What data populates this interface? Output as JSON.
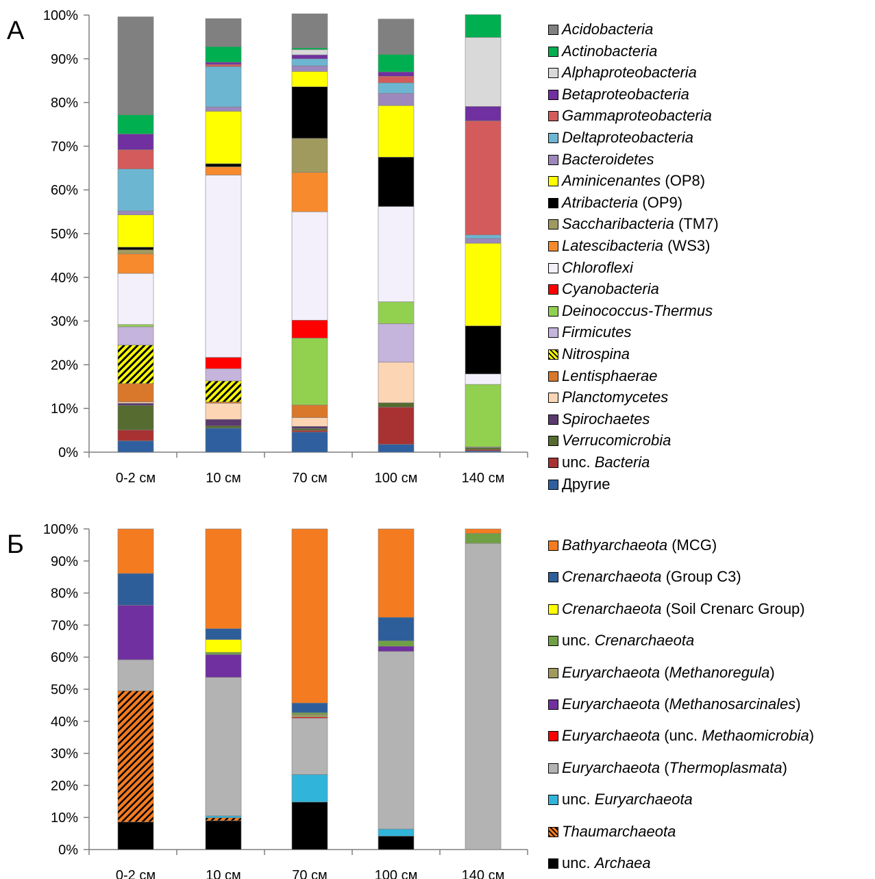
{
  "panels": [
    {
      "label": "А",
      "chart_data": {
        "type": "bar",
        "stacked": true,
        "percent": true,
        "categories": [
          "0-2 см",
          "10 см",
          "70 см",
          "100 см",
          "140 см"
        ],
        "yticks": [
          "0%",
          "10%",
          "20%",
          "30%",
          "40%",
          "50%",
          "60%",
          "70%",
          "80%",
          "90%",
          "100%"
        ],
        "ylim": [
          0,
          100
        ],
        "grid": false,
        "legend": "right",
        "series": [
          {
            "name": "Другие",
            "color": "#2f5f9e",
            "pattern": "none",
            "values": [
              2.6,
              5.5,
              4.6,
              1.8,
              0.3
            ]
          },
          {
            "name": "unc. Bacteria",
            "color": "#a83232",
            "pattern": "none",
            "values": [
              2.5,
              0.0,
              0.4,
              8.5,
              0.3
            ]
          },
          {
            "name": "Verrucomicrobia",
            "color": "#556b2f",
            "pattern": "none",
            "values": [
              5.6,
              0.5,
              0.4,
              1.0,
              0.4
            ]
          },
          {
            "name": "Spirochaetes",
            "color": "#5a3a6e",
            "pattern": "none",
            "values": [
              0.5,
              1.5,
              0.5,
              0.0,
              0.0
            ]
          },
          {
            "name": "Planctomycetes",
            "color": "#fcd5b4",
            "pattern": "none",
            "values": [
              0.3,
              3.7,
              2.0,
              9.3,
              0.1
            ]
          },
          {
            "name": "Lentisphaerae",
            "color": "#d9782b",
            "pattern": "none",
            "values": [
              4.2,
              0.3,
              2.9,
              0.0,
              0.1
            ]
          },
          {
            "name": "Nitrospina",
            "color": "#ffff00",
            "pattern": "hatch",
            "values": [
              8.8,
              4.8,
              0.0,
              0.0,
              0.0
            ]
          },
          {
            "name": "Firmicutes",
            "color": "#c5b4dc",
            "pattern": "none",
            "values": [
              4.2,
              2.8,
              0.0,
              8.8,
              0.0
            ]
          },
          {
            "name": "Deinococcus-Thermus",
            "color": "#92d050",
            "pattern": "none",
            "values": [
              0.5,
              0.0,
              15.3,
              5.0,
              14.3
            ]
          },
          {
            "name": "Cyanobacteria",
            "color": "#ff0000",
            "pattern": "none",
            "values": [
              0.0,
              2.6,
              4.1,
              0.0,
              0.0
            ]
          },
          {
            "name": "Chloroflexi",
            "color": "#f3effb",
            "pattern": "none",
            "values": [
              11.7,
              41.7,
              24.8,
              21.8,
              2.4
            ]
          },
          {
            "name": "Latescibacteria",
            "color": "#f68a2d",
            "pattern": "none",
            "values": [
              4.5,
              1.9,
              9.0,
              0.0,
              0.0
            ]
          },
          {
            "name": "Saccharibacteria",
            "color": "#a09a5e",
            "pattern": "none",
            "values": [
              0.9,
              0.0,
              7.8,
              0.0,
              0.0
            ]
          },
          {
            "name": "Atribacteria",
            "color": "#000000",
            "pattern": "none",
            "values": [
              0.6,
              0.7,
              11.8,
              11.3,
              11.0
            ]
          },
          {
            "name": "Aminicenantes",
            "color": "#ffff00",
            "pattern": "none",
            "values": [
              7.4,
              12.0,
              3.5,
              11.8,
              18.9
            ]
          },
          {
            "name": "Bacteroidetes",
            "color": "#9c88bc",
            "pattern": "none",
            "values": [
              0.9,
              1.0,
              1.3,
              2.8,
              1.1
            ]
          },
          {
            "name": "Deltaproteobacteria",
            "color": "#6db6d2",
            "pattern": "none",
            "values": [
              9.6,
              9.2,
              1.6,
              2.4,
              0.8
            ]
          },
          {
            "name": "Gammaproteobacteria",
            "color": "#d35b5b",
            "pattern": "none",
            "values": [
              4.4,
              0.5,
              0.0,
              1.5,
              26.1
            ]
          },
          {
            "name": "Betaproteobacteria",
            "color": "#7030a0",
            "pattern": "none",
            "values": [
              3.6,
              0.5,
              0.9,
              1.0,
              3.3
            ]
          },
          {
            "name": "Alphaproteobacteria",
            "color": "#d9d9d9",
            "pattern": "none",
            "values": [
              0.0,
              0.0,
              1.2,
              0.0,
              15.8
            ]
          },
          {
            "name": "Actinobacteria",
            "color": "#00b050",
            "pattern": "none",
            "values": [
              4.4,
              3.6,
              0.4,
              4.0,
              5.2
            ]
          },
          {
            "name": "Acidobacteria",
            "color": "#808080",
            "pattern": "none",
            "values": [
              22.4,
              6.4,
              7.8,
              8.1,
              0.0
            ]
          }
        ]
      },
      "legend": [
        {
          "color": "#808080",
          "pattern": "none",
          "italic": "Acidobacteria",
          "plain": "",
          "prefix": ""
        },
        {
          "color": "#00b050",
          "pattern": "none",
          "italic": "Actinobacteria",
          "plain": "",
          "prefix": ""
        },
        {
          "color": "#d9d9d9",
          "pattern": "none",
          "italic": "Alphaproteobacteria",
          "plain": "",
          "prefix": ""
        },
        {
          "color": "#7030a0",
          "pattern": "none",
          "italic": "Betaproteobacteria",
          "plain": "",
          "prefix": ""
        },
        {
          "color": "#d35b5b",
          "pattern": "none",
          "italic": "Gammaproteobacteria",
          "plain": "",
          "prefix": ""
        },
        {
          "color": "#6db6d2",
          "pattern": "none",
          "italic": "Deltaproteobacteria",
          "plain": "",
          "prefix": ""
        },
        {
          "color": "#9c88bc",
          "pattern": "none",
          "italic": "Bacteroidetes",
          "plain": "",
          "prefix": ""
        },
        {
          "color": "#ffff00",
          "pattern": "none",
          "italic": "Aminicenantes",
          "plain": " (OP8)",
          "prefix": ""
        },
        {
          "color": "#000000",
          "pattern": "none",
          "italic": "Atribacteria",
          "plain": " (OP9)",
          "prefix": ""
        },
        {
          "color": "#a09a5e",
          "pattern": "none",
          "italic": "Saccharibacteria",
          "plain": " (TM7)",
          "prefix": ""
        },
        {
          "color": "#f68a2d",
          "pattern": "none",
          "italic": "Latescibacteria",
          "plain": " (WS3)",
          "prefix": ""
        },
        {
          "color": "#f3effb",
          "pattern": "none",
          "italic": "Chloroflexi",
          "plain": "",
          "prefix": ""
        },
        {
          "color": "#ff0000",
          "pattern": "none",
          "italic": "Cyanobacteria",
          "plain": "",
          "prefix": ""
        },
        {
          "color": "#92d050",
          "pattern": "none",
          "italic": "Deinococcus-Thermus",
          "plain": "",
          "prefix": ""
        },
        {
          "color": "#c5b4dc",
          "pattern": "none",
          "italic": "Firmicutes",
          "plain": "",
          "prefix": ""
        },
        {
          "color": "#ffff00",
          "pattern": "hatch",
          "italic": "Nitrospina",
          "plain": "",
          "prefix": ""
        },
        {
          "color": "#d9782b",
          "pattern": "none",
          "italic": "Lentisphaerae",
          "plain": "",
          "prefix": ""
        },
        {
          "color": "#fcd5b4",
          "pattern": "none",
          "italic": "Planctomycetes",
          "plain": "",
          "prefix": ""
        },
        {
          "color": "#5a3a6e",
          "pattern": "none",
          "italic": "Spirochaetes",
          "plain": "",
          "prefix": ""
        },
        {
          "color": "#556b2f",
          "pattern": "none",
          "italic": "Verrucomicrobia",
          "plain": "",
          "prefix": ""
        },
        {
          "color": "#a83232",
          "pattern": "none",
          "italic": "Bacteria",
          "plain": "",
          "prefix": "unc. "
        },
        {
          "color": "#2f5f9e",
          "pattern": "none",
          "italic": "",
          "plain": "Другие",
          "prefix": ""
        }
      ]
    },
    {
      "label": "Б",
      "chart_data": {
        "type": "bar",
        "stacked": true,
        "percent": true,
        "categories": [
          "0-2 см",
          "10 см",
          "70 см",
          "100 см",
          "140 см"
        ],
        "yticks": [
          "0%",
          "10%",
          "20%",
          "30%",
          "40%",
          "50%",
          "60%",
          "70%",
          "80%",
          "90%",
          "100%"
        ],
        "ylim": [
          0,
          100
        ],
        "grid": false,
        "legend": "right",
        "series": [
          {
            "name": "unc. Archaea",
            "color": "#000000",
            "pattern": "none",
            "values": [
              8.6,
              9.0,
              14.8,
              4.2,
              0.0
            ]
          },
          {
            "name": "Thaumarchaeota",
            "color": "#f47b20",
            "pattern": "hatch",
            "values": [
              40.9,
              0.9,
              0.0,
              0.0,
              0.0
            ]
          },
          {
            "name": "unc. Euryarchaeota",
            "color": "#31b4d9",
            "pattern": "none",
            "values": [
              0.0,
              0.6,
              8.6,
              2.2,
              0.0
            ]
          },
          {
            "name": "Euryarchaeota (Thermoplasmata)",
            "color": "#b3b3b3",
            "pattern": "none",
            "values": [
              9.7,
              43.2,
              17.6,
              55.4,
              95.5
            ]
          },
          {
            "name": "Euryarchaeota (unc. Methaomicrobia)",
            "color": "#ff0000",
            "pattern": "none",
            "values": [
              0.0,
              0.0,
              0.3,
              0.0,
              0.0
            ]
          },
          {
            "name": "Euryarchaeota (Methanosarcinales)",
            "color": "#7030a0",
            "pattern": "none",
            "values": [
              17.0,
              7.1,
              0.0,
              1.6,
              0.0
            ]
          },
          {
            "name": "Euryarchaeota (Methanoregula)",
            "color": "#a09a5e",
            "pattern": "none",
            "values": [
              0.0,
              0.0,
              0.8,
              0.0,
              0.0
            ]
          },
          {
            "name": "unc. Crenarchaeota",
            "color": "#70a045",
            "pattern": "none",
            "values": [
              0.0,
              0.7,
              0.6,
              1.7,
              3.1
            ]
          },
          {
            "name": "Crenarchaeota (Soil Crenarc Group)",
            "color": "#ffff00",
            "pattern": "none",
            "values": [
              0.0,
              4.0,
              0.0,
              0.0,
              0.0
            ]
          },
          {
            "name": "Crenarchaeota (Group C3)",
            "color": "#2e5e9a",
            "pattern": "none",
            "values": [
              9.9,
              3.4,
              3.0,
              7.3,
              0.0
            ]
          },
          {
            "name": "Bathyarchaeota (MCG)",
            "color": "#f47b20",
            "pattern": "none",
            "values": [
              13.9,
              31.1,
              54.3,
              27.6,
              1.4
            ]
          }
        ]
      },
      "legend": [
        {
          "color": "#f47b20",
          "pattern": "none",
          "prefix": "",
          "italic": "Bathyarchaeota",
          "plain": " (MCG)"
        },
        {
          "color": "#2e5e9a",
          "pattern": "none",
          "prefix": "",
          "italic": "Crenarchaeota",
          "plain": " (Group C3)"
        },
        {
          "color": "#ffff00",
          "pattern": "none",
          "prefix": "",
          "italic": "Crenarchaeota",
          "plain": " (Soil Crenarc Group)"
        },
        {
          "color": "#70a045",
          "pattern": "none",
          "prefix": "unc. ",
          "italic": "Crenarchaeota",
          "plain": ""
        },
        {
          "color": "#a09a5e",
          "pattern": "none",
          "prefix": "",
          "italic": "Euryarchaeota",
          "plain": " (",
          "italic2": "Methanoregula",
          "plain2": ")"
        },
        {
          "color": "#7030a0",
          "pattern": "none",
          "prefix": "",
          "italic": "Euryarchaeota",
          "plain": " (",
          "italic2": "Methanosarcinales",
          "plain2": ")"
        },
        {
          "color": "#ff0000",
          "pattern": "none",
          "prefix": "",
          "italic": "Euryarchaeota",
          "plain": " (unc. ",
          "italic2": "Methaomicrobia",
          "plain2": ")"
        },
        {
          "color": "#b3b3b3",
          "pattern": "none",
          "prefix": "",
          "italic": " Euryarchaeota",
          "plain": " (",
          "italic2": "Thermoplasmata",
          "plain2": ")"
        },
        {
          "color": "#31b4d9",
          "pattern": "none",
          "prefix": "unc. ",
          "italic": "Euryarchaeota",
          "plain": ""
        },
        {
          "color": "#f47b20",
          "pattern": "hatch",
          "prefix": "",
          "italic": "Thaumarchaeota",
          "plain": ""
        },
        {
          "color": "#000000",
          "pattern": "none",
          "prefix": "unc. ",
          "italic": "Archaea",
          "plain": ""
        }
      ]
    }
  ]
}
